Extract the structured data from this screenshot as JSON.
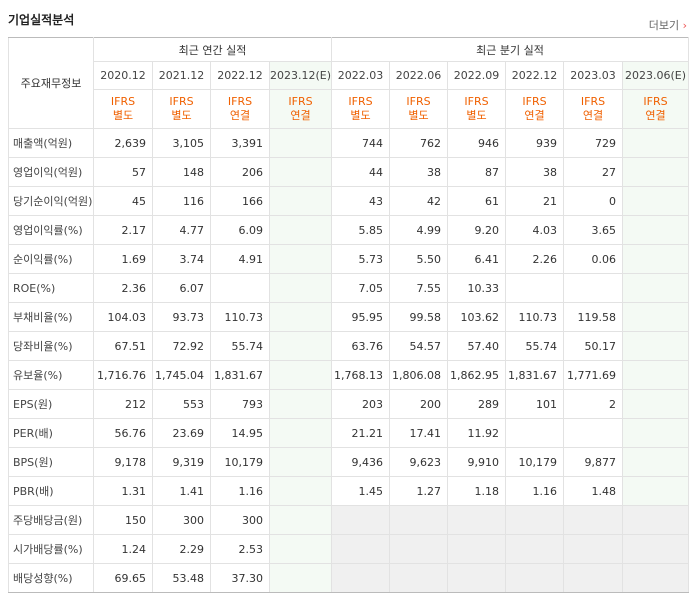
{
  "header": {
    "title": "기업실적분석",
    "more": "더보기"
  },
  "table": {
    "corner": "주요재무정보",
    "groups": [
      "최근 연간 실적",
      "최근 분기 실적"
    ],
    "periods": [
      "2020.12",
      "2021.12",
      "2022.12",
      "2023.12(E)",
      "2022.03",
      "2022.06",
      "2022.09",
      "2022.12",
      "2023.03",
      "2023.06(E)"
    ],
    "accounting": [
      [
        "IFRS",
        "별도"
      ],
      [
        "IFRS",
        "별도"
      ],
      [
        "IFRS",
        "연결"
      ],
      [
        "IFRS",
        "연결"
      ],
      [
        "IFRS",
        "별도"
      ],
      [
        "IFRS",
        "별도"
      ],
      [
        "IFRS",
        "별도"
      ],
      [
        "IFRS",
        "연결"
      ],
      [
        "IFRS",
        "연결"
      ],
      [
        "IFRS",
        "연결"
      ]
    ],
    "rows": [
      [
        "매출액(억원)",
        "2,639",
        "3,105",
        "3,391",
        null,
        "744",
        "762",
        "946",
        "939",
        "729",
        null
      ],
      [
        "영업이익(억원)",
        "57",
        "148",
        "206",
        null,
        "44",
        "38",
        "87",
        "38",
        "27",
        null
      ],
      [
        "당기순이익(억원)",
        "45",
        "116",
        "166",
        null,
        "43",
        "42",
        "61",
        "21",
        "0",
        null
      ],
      [
        "영업이익률(%)",
        "2.17",
        "4.77",
        "6.09",
        null,
        "5.85",
        "4.99",
        "9.20",
        "4.03",
        "3.65",
        null
      ],
      [
        "순이익률(%)",
        "1.69",
        "3.74",
        "4.91",
        null,
        "5.73",
        "5.50",
        "6.41",
        "2.26",
        "0.06",
        null
      ],
      [
        "ROE(%)",
        "2.36",
        "6.07",
        null,
        null,
        "7.05",
        "7.55",
        "10.33",
        null,
        null,
        null
      ],
      [
        "부채비율(%)",
        "104.03",
        "93.73",
        "110.73",
        null,
        "95.95",
        "99.58",
        "103.62",
        "110.73",
        "119.58",
        null
      ],
      [
        "당좌비율(%)",
        "67.51",
        "72.92",
        "55.74",
        null,
        "63.76",
        "54.57",
        "57.40",
        "55.74",
        "50.17",
        null
      ],
      [
        "유보율(%)",
        "1,716.76",
        "1,745.04",
        "1,831.67",
        null,
        "1,768.13",
        "1,806.08",
        "1,862.95",
        "1,831.67",
        "1,771.69",
        null
      ],
      [
        "EPS(원)",
        "212",
        "553",
        "793",
        null,
        "203",
        "200",
        "289",
        "101",
        "2",
        null
      ],
      [
        "PER(배)",
        "56.76",
        "23.69",
        "14.95",
        null,
        "21.21",
        "17.41",
        "11.92",
        null,
        null,
        null
      ],
      [
        "BPS(원)",
        "9,178",
        "9,319",
        "10,179",
        null,
        "9,436",
        "9,623",
        "9,910",
        "10,179",
        "9,877",
        null
      ],
      [
        "PBR(배)",
        "1.31",
        "1.41",
        "1.16",
        null,
        "1.45",
        "1.27",
        "1.18",
        "1.16",
        "1.48",
        null
      ],
      [
        "주당배당금(원)",
        "150",
        "300",
        "300",
        null,
        null,
        null,
        null,
        null,
        null,
        null
      ],
      [
        "시가배당률(%)",
        "1.24",
        "2.29",
        "2.53",
        null,
        null,
        null,
        null,
        null,
        null,
        null
      ],
      [
        "배당성향(%)",
        "69.65",
        "53.48",
        "37.30",
        null,
        null,
        null,
        null,
        null,
        null,
        null
      ]
    ]
  }
}
